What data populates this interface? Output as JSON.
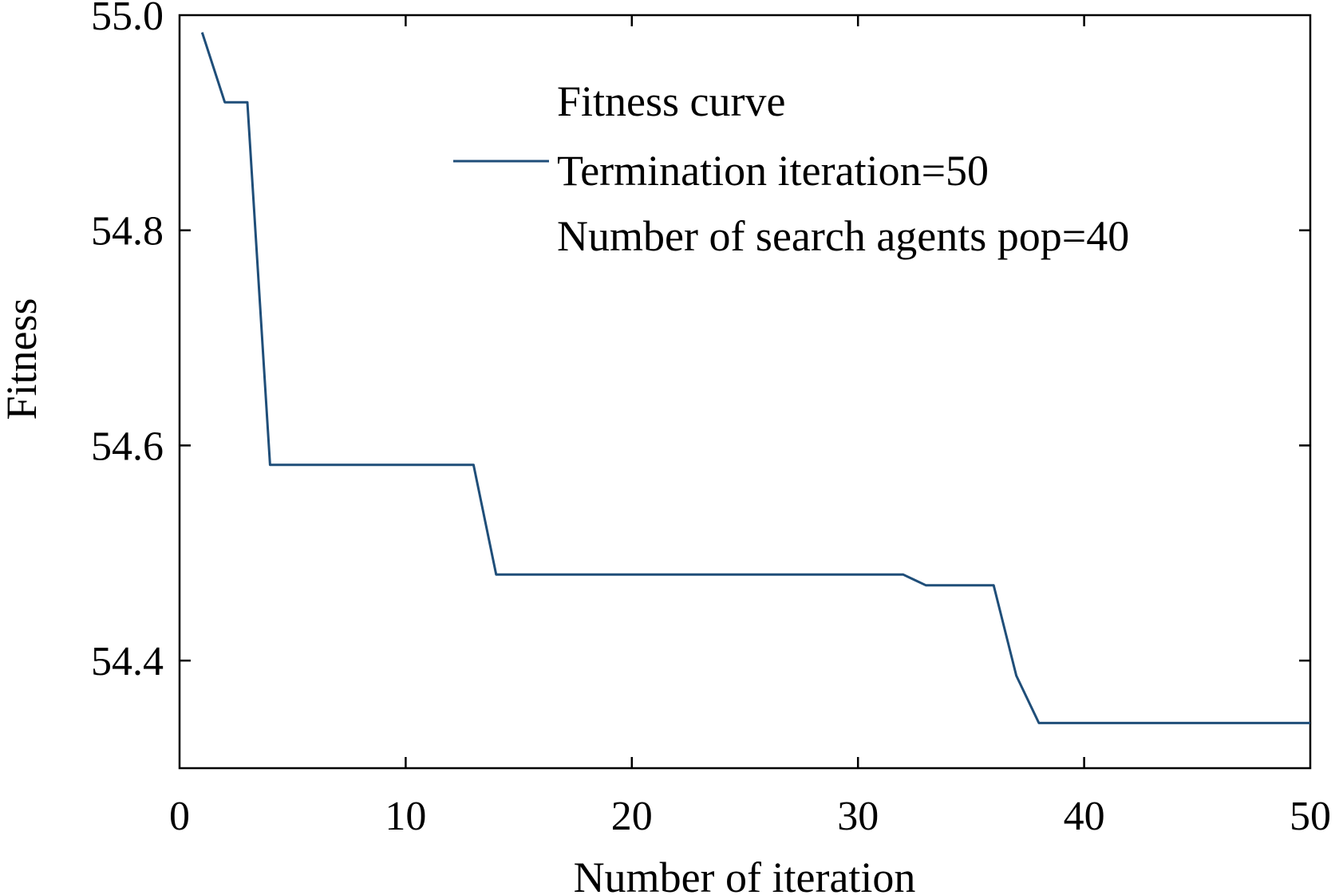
{
  "chart_data": {
    "type": "line",
    "xlabel": "Number of iteration",
    "ylabel": "Fitness",
    "xlim": [
      0,
      50
    ],
    "ylim": [
      54.3,
      55.0
    ],
    "xticks": [
      0,
      10,
      20,
      30,
      40,
      50
    ],
    "yticks": [
      54.4,
      54.6,
      54.8,
      55.0
    ],
    "xtick_labels": [
      "0",
      "10",
      "20",
      "30",
      "40",
      "50"
    ],
    "ytick_labels": [
      "54.4",
      "54.6",
      "54.8",
      "55.0"
    ],
    "grid": false,
    "legend": {
      "placement": "top-center",
      "title": "Fitness curve",
      "entries": [
        "Termination iteration=50",
        "Number of search agents pop=40"
      ]
    },
    "line_color": "#1f4e79",
    "series": [
      {
        "x": [
          1,
          2,
          3,
          4,
          5,
          6,
          7,
          8,
          9,
          10,
          11,
          12,
          13,
          14,
          15,
          16,
          17,
          18,
          19,
          20,
          21,
          22,
          23,
          24,
          25,
          26,
          27,
          28,
          29,
          30,
          31,
          32,
          33,
          34,
          35,
          36,
          37,
          38,
          39,
          40,
          41,
          42,
          43,
          44,
          45,
          46,
          47,
          48,
          49,
          50
        ],
        "values": [
          54.984,
          54.919,
          54.919,
          54.582,
          54.582,
          54.582,
          54.582,
          54.582,
          54.582,
          54.582,
          54.582,
          54.582,
          54.582,
          54.48,
          54.48,
          54.48,
          54.48,
          54.48,
          54.48,
          54.48,
          54.48,
          54.48,
          54.48,
          54.48,
          54.48,
          54.48,
          54.48,
          54.48,
          54.48,
          54.48,
          54.48,
          54.48,
          54.47,
          54.47,
          54.47,
          54.47,
          54.386,
          54.342,
          54.342,
          54.342,
          54.342,
          54.342,
          54.342,
          54.342,
          54.342,
          54.342,
          54.342,
          54.342,
          54.342,
          54.342
        ]
      }
    ]
  }
}
